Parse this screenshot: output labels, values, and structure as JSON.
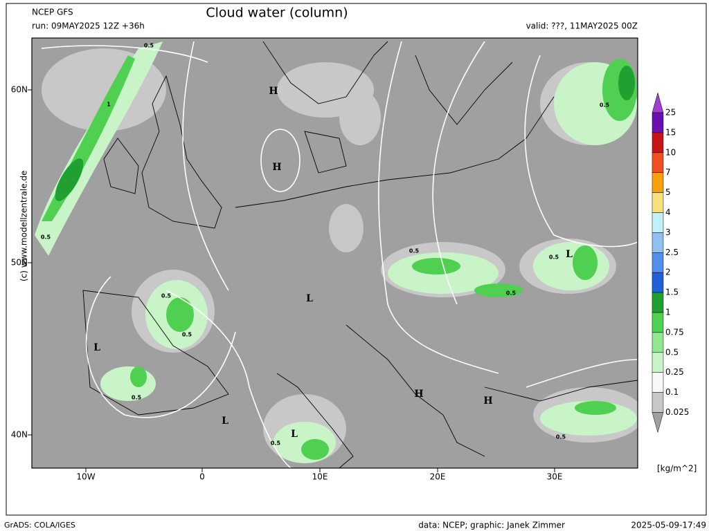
{
  "header": {
    "model": "NCEP GFS",
    "run": "run: 09MAY2025 12Z +36h",
    "title": "Cloud water (column)",
    "valid": "valid: ???, 11MAY2025 00Z"
  },
  "map": {
    "lat_labels": [
      "60N",
      "50N",
      "40N"
    ],
    "lon_labels": [
      "10W",
      "0",
      "10E",
      "20E",
      "30E"
    ],
    "highs": [
      "H",
      "H",
      "H",
      "H"
    ],
    "lows": [
      "L",
      "L",
      "L",
      "L",
      "L"
    ],
    "contour_labels": [
      "0.5",
      "1",
      "0.5",
      "0.5",
      "0.5",
      "0.5",
      "0.5",
      "0.5",
      "0.5",
      "0.5",
      "0.5",
      "0.5"
    ]
  },
  "colorbar": {
    "levels": [
      "25",
      "15",
      "10",
      "7",
      "5",
      "4",
      "3",
      "2.5",
      "2",
      "1.5",
      "1",
      "0.75",
      "0.5",
      "0.25",
      "0.1",
      "0.025"
    ],
    "colors": [
      "#a040d0",
      "#6a10b0",
      "#c81414",
      "#f05020",
      "#f8a010",
      "#f8e080",
      "#c0f0f8",
      "#90c0f0",
      "#5090e8",
      "#2060d8",
      "#20a030",
      "#50d050",
      "#90e890",
      "#c8f4c8",
      "#f8f8f8",
      "#c8c8c8",
      "#a0a0a0"
    ],
    "unit": "[kg/m^2]"
  },
  "footer": {
    "copyright": "(c) www.modellzentrale.de",
    "software": "GrADS: COLA/IGES",
    "credit": "data: NCEP; graphic: Janek Zimmer",
    "timestamp": "2025-05-09-17:49"
  }
}
